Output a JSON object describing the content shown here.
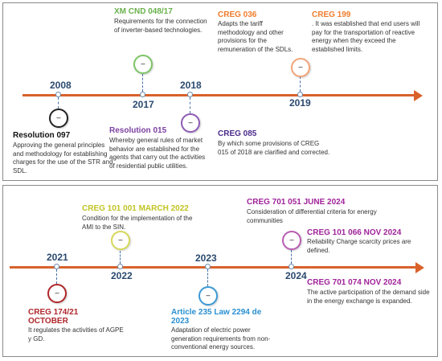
{
  "top": {
    "years": {
      "y2008": "2008",
      "y2017": "2017",
      "y2018": "2018",
      "y2019": "2019"
    },
    "events": [
      {
        "title": "Resolution 097",
        "color": "#111111",
        "description": "Approving the general principles and methodology for establishing charges for the use of the STR and SDL."
      },
      {
        "title": "XM CND 048/17",
        "color": "#6ab04c",
        "description": "Requirements for the connection of inverter-based technologies."
      },
      {
        "title": "Resolution 015",
        "color": "#7b3fa0",
        "description": "Whereby general rules of market behavior are established for the agents that carry out the activities of residential public utilities."
      },
      {
        "title": "CREG 036",
        "color": "#f07c2c",
        "description": "Adapts the tariff methodology and other provisions for the remuneration of the SDLs."
      },
      {
        "title": "CREG 085",
        "color": "#4a2a8a",
        "description": "By which some provisions of CREG 015 of 2018 are clarified and corrected."
      },
      {
        "title": "CREG 199",
        "color": "#f07c2c",
        "description": ". It was established that end users will pay for the transportation of reactive energy when they exceed the established limits."
      }
    ]
  },
  "bottom": {
    "years": {
      "y2021": "2021",
      "y2022": "2022",
      "y2023": "2023",
      "y2024": "2024"
    },
    "events": [
      {
        "title": "CREG 174/21",
        "title2": "OCTOBER",
        "color": "#b0262a",
        "description": "It regulates the activities of AGPE y GD."
      },
      {
        "title": "CREG 101 001 MARCH 2022",
        "color": "#c2c423",
        "description": "Condition for the implementation of the AMI to the SIN."
      },
      {
        "title": "Article 235 Law 2294 de",
        "title2": "2023",
        "color": "#2a8fd0",
        "description": "Adaptation of electric power generation requirements from non-conventional energy sources."
      },
      {
        "title": "CREG 701 051 JUNE 2024",
        "color": "#a0239a",
        "description": "Consideration of differential criteria for energy communities"
      },
      {
        "title": "CREG 101 066 NOV 2024",
        "color": "#a0239a",
        "description": "Reliability Charge scarcity prices are defined."
      },
      {
        "title": "CREG 701 074 NOV 2024",
        "color": "#a0239a",
        "description": "The active participation of the demand side in the energy exchange is expanded."
      }
    ]
  },
  "circle_glyph": "–"
}
